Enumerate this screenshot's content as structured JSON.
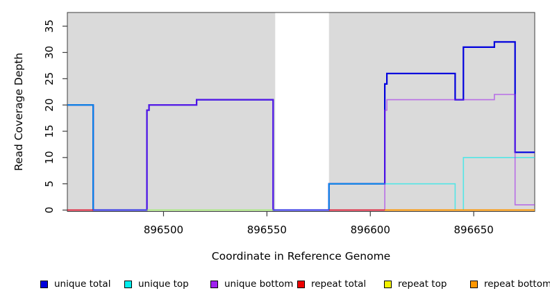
{
  "chart_data": {
    "type": "line",
    "subtype": "step-coverage",
    "title": "",
    "xlabel": "Coordinate in Reference Genome",
    "ylabel": "Read Coverage Depth",
    "xlim": [
      896453.5,
      896679.5
    ],
    "ylim": [
      0,
      37.6
    ],
    "x_ticks": [
      896500,
      896550,
      896600,
      896650
    ],
    "y_ticks": [
      0,
      5,
      10,
      15,
      20,
      25,
      30,
      35
    ],
    "grid": false,
    "legend_position": "bottom",
    "band_color": "#dadada",
    "background_bands": [
      {
        "start": 896453.5,
        "end": 896554
      },
      {
        "start": 896580,
        "end": 896679.5
      }
    ],
    "series": [
      {
        "name": "unique-total",
        "label": "unique total",
        "color": "#0000dd",
        "runs": [
          [
            [
              896453.5,
              20
            ],
            [
              896466,
              0
            ],
            [
              896492,
              19
            ],
            [
              896493,
              20
            ],
            [
              896516,
              21
            ],
            [
              896553,
              0
            ],
            [
              896580,
              5
            ],
            [
              896607,
              24
            ],
            [
              896608,
              26
            ],
            [
              896641,
              21
            ],
            [
              896645,
              31
            ],
            [
              896660,
              32
            ],
            [
              896670,
              11
            ],
            [
              896679.5,
              11
            ]
          ]
        ]
      },
      {
        "name": "unique-top",
        "label": "unique top",
        "color": "#00eeee",
        "runs": [
          [
            [
              896453.5,
              20
            ],
            [
              896466,
              0
            ],
            [
              896580,
              5
            ],
            [
              896641,
              0
            ],
            [
              896645,
              10
            ],
            [
              896679.5,
              10
            ]
          ]
        ]
      },
      {
        "name": "unique-bottom",
        "label": "unique bottom",
        "color": "#a020f0",
        "runs": [
          [
            [
              896453.5,
              0
            ],
            [
              896492,
              19
            ],
            [
              896493,
              20
            ],
            [
              896516,
              21
            ],
            [
              896553,
              0
            ],
            [
              896607,
              19
            ],
            [
              896608,
              21
            ],
            [
              896660,
              22
            ],
            [
              896670,
              1
            ],
            [
              896679.5,
              1
            ]
          ]
        ]
      },
      {
        "name": "repeat-total",
        "label": "repeat total",
        "color": "#ee0000",
        "runs": [
          [
            [
              896453.5,
              0
            ],
            [
              896466,
              0
            ]
          ],
          [
            [
              896580,
              0
            ],
            [
              896679.5,
              0
            ]
          ]
        ]
      },
      {
        "name": "repeat-top",
        "label": "repeat top",
        "color": "#f2f200",
        "runs": [
          [
            [
              896492,
              0
            ],
            [
              896553,
              0
            ]
          ]
        ]
      },
      {
        "name": "repeat-bottom",
        "label": "repeat bottom",
        "color": "#ff9700",
        "runs": [
          [
            [
              896607,
              0
            ],
            [
              896679.5,
              0
            ]
          ]
        ]
      }
    ]
  }
}
